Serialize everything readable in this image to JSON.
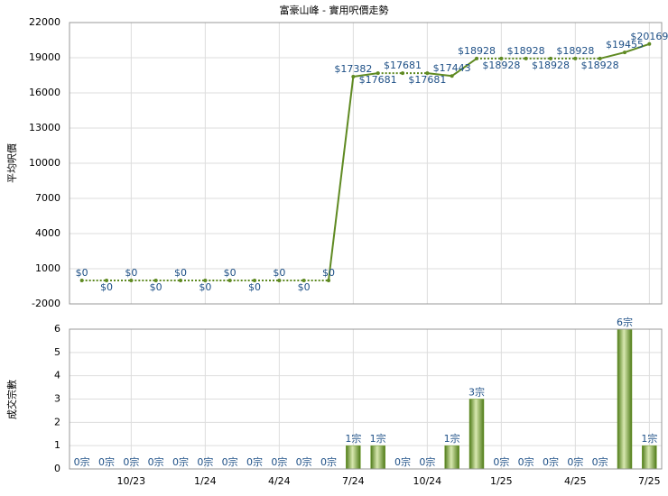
{
  "chart_data": [
    {
      "type": "line",
      "title": "富豪山峰 - 實用呎價走勢",
      "y_label": "平均呎價",
      "color": "#5f8a22",
      "label_color": "#1d4f86",
      "values": [
        0,
        0,
        0,
        0,
        0,
        0,
        0,
        0,
        0,
        0,
        0,
        17382,
        17681,
        17681,
        17681,
        17443,
        18928,
        18928,
        18928,
        18928,
        18928,
        18928,
        19455,
        20169
      ],
      "value_labels": [
        "$0",
        "$0",
        "$0",
        "$0",
        "$0",
        "$0",
        "$0",
        "$0",
        "$0",
        "$0",
        "$0",
        "$17382",
        "$17681",
        "$17681",
        "$17681",
        "$17443",
        "$18928",
        "$18928",
        "$18928",
        "$18928",
        "$18928",
        "$18928",
        "$19455",
        "$20169"
      ],
      "ylim": [
        -2000,
        22000
      ],
      "yticks": [
        -2000,
        1000,
        4000,
        7000,
        10000,
        13000,
        16000,
        19000,
        22000
      ],
      "grid": true
    },
    {
      "type": "bar",
      "y_label": "成交宗數",
      "color": "#6e9a2a",
      "label_color": "#1d4f86",
      "categories": [
        null,
        null,
        "10/23",
        null,
        null,
        "1/24",
        null,
        null,
        "4/24",
        null,
        null,
        "7/24",
        null,
        null,
        "10/24",
        null,
        null,
        "1/25",
        null,
        null,
        "4/25",
        null,
        null,
        "7/25"
      ],
      "values": [
        0,
        0,
        0,
        0,
        0,
        0,
        0,
        0,
        0,
        0,
        0,
        1,
        1,
        0,
        0,
        1,
        3,
        0,
        0,
        0,
        0,
        0,
        6,
        1
      ],
      "value_labels": [
        "0宗",
        "0宗",
        "0宗",
        "0宗",
        "0宗",
        "0宗",
        "0宗",
        "0宗",
        "0宗",
        "0宗",
        "0宗",
        "1宗",
        "1宗",
        "0宗",
        "0宗",
        "1宗",
        "3宗",
        "0宗",
        "0宗",
        "0宗",
        "0宗",
        "0宗",
        "6宗",
        "1宗"
      ],
      "ylim": [
        0,
        6
      ],
      "yticks": [
        0,
        1,
        2,
        3,
        4,
        5,
        6
      ],
      "grid": true
    }
  ]
}
